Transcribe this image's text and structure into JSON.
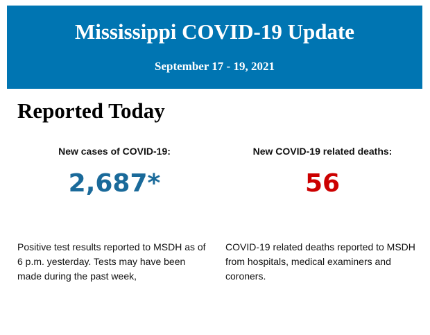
{
  "header": {
    "title": "Mississippi COVID-19 Update",
    "date_range": "September 17 - 19, 2021"
  },
  "section_title": "Reported Today",
  "stats": [
    {
      "label": "New cases of COVID-19:",
      "value": "2,687*",
      "color": "#1a6a9a",
      "description": "Positive test results reported to MSDH as of 6 p.m. yesterday. Tests may have been made during the past week,"
    },
    {
      "label": "New COVID-19 related deaths:",
      "value": "56",
      "color": "#cc0000",
      "description": "COVID-19 related deaths reported to MSDH from hospitals, medical examiners and coroners."
    }
  ],
  "colors": {
    "banner": "#0075b2"
  }
}
